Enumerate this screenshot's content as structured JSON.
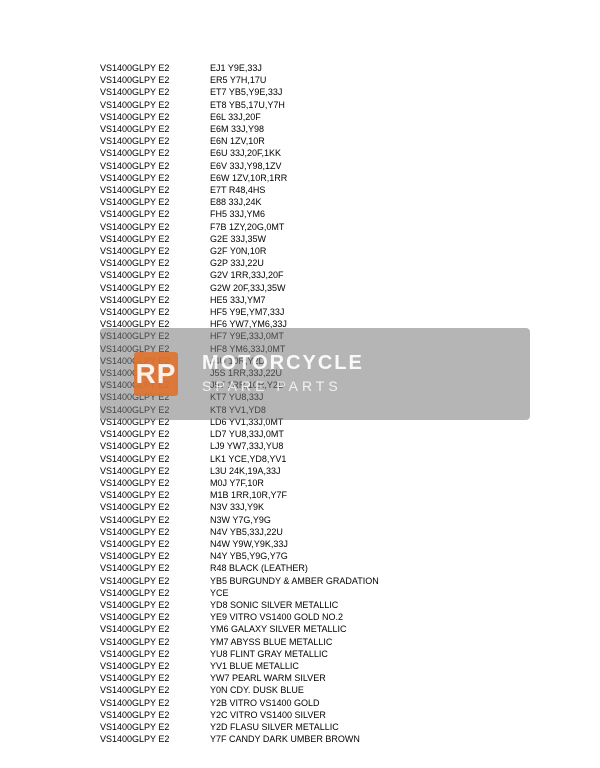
{
  "rows": [
    {
      "model": "VS1400GLPY E2",
      "code": "EJ1 Y9E,33J"
    },
    {
      "model": "VS1400GLPY E2",
      "code": "ER5 Y7H,17U"
    },
    {
      "model": "VS1400GLPY E2",
      "code": "ET7 YB5,Y9E,33J"
    },
    {
      "model": "VS1400GLPY E2",
      "code": "ET8 YB5,17U,Y7H"
    },
    {
      "model": "VS1400GLPY E2",
      "code": "E6L 33J,20F"
    },
    {
      "model": "VS1400GLPY E2",
      "code": "E6M 33J,Y98"
    },
    {
      "model": "VS1400GLPY E2",
      "code": "E6N 1ZV,10R"
    },
    {
      "model": "VS1400GLPY E2",
      "code": "E6U 33J,20F,1KK"
    },
    {
      "model": "VS1400GLPY E2",
      "code": "E6V 33J,Y98,1ZV"
    },
    {
      "model": "VS1400GLPY E2",
      "code": "E6W 1ZV,10R,1RR"
    },
    {
      "model": "VS1400GLPY E2",
      "code": "E7T R48,4HS"
    },
    {
      "model": "VS1400GLPY E2",
      "code": "E88 33J,24K"
    },
    {
      "model": "VS1400GLPY E2",
      "code": "FH5 33J,YM6"
    },
    {
      "model": "VS1400GLPY E2",
      "code": "F7B 1ZY,20G,0MT"
    },
    {
      "model": "VS1400GLPY E2",
      "code": "G2E 33J,35W"
    },
    {
      "model": "VS1400GLPY E2",
      "code": "G2F Y0N,10R"
    },
    {
      "model": "VS1400GLPY E2",
      "code": "G2P 33J,22U"
    },
    {
      "model": "VS1400GLPY E2",
      "code": "G2V 1RR,33J,20F"
    },
    {
      "model": "VS1400GLPY E2",
      "code": "G2W 20F,33J,35W"
    },
    {
      "model": "VS1400GLPY E2",
      "code": "HE5 33J,YM7"
    },
    {
      "model": "VS1400GLPY E2",
      "code": "HF5 Y9E,YM7,33J"
    },
    {
      "model": "VS1400GLPY E2",
      "code": "HF6 YW7,YM6,33J"
    },
    {
      "model": "VS1400GLPY E2",
      "code": "HF7 Y9E,33J,0MT"
    },
    {
      "model": "VS1400GLPY E2",
      "code": "HF8 YM6,33J,0MT"
    },
    {
      "model": "VS1400GLPY E2",
      "code": "J4U 10R,Y2D"
    },
    {
      "model": "VS1400GLPY E2",
      "code": "J5S 1RR,33J,22U"
    },
    {
      "model": "VS1400GLPY E2",
      "code": "J5T 1RR,10R,Y2D"
    },
    {
      "model": "VS1400GLPY E2",
      "code": "KT7 YU8,33J"
    },
    {
      "model": "VS1400GLPY E2",
      "code": "KT8 YV1,YD8"
    },
    {
      "model": "VS1400GLPY E2",
      "code": "LD6 YV1,33J,0MT"
    },
    {
      "model": "VS1400GLPY E2",
      "code": "LD7 YU8,33J,0MT"
    },
    {
      "model": "VS1400GLPY E2",
      "code": "LJ9 YW7,33J,YU8"
    },
    {
      "model": "VS1400GLPY E2",
      "code": "LK1 YCE,YD8,YV1"
    },
    {
      "model": "VS1400GLPY E2",
      "code": "L3U 24K,19A,33J"
    },
    {
      "model": "VS1400GLPY E2",
      "code": "M0J Y7F,10R"
    },
    {
      "model": "VS1400GLPY E2",
      "code": "M1B 1RR,10R,Y7F"
    },
    {
      "model": "VS1400GLPY E2",
      "code": "N3V 33J,Y9K"
    },
    {
      "model": "VS1400GLPY E2",
      "code": "N3W Y7G,Y9G"
    },
    {
      "model": "VS1400GLPY E2",
      "code": "N4V YB5,33J,22U"
    },
    {
      "model": "VS1400GLPY E2",
      "code": "N4W Y9W,Y9K,33J"
    },
    {
      "model": "VS1400GLPY E2",
      "code": "N4Y YB5,Y9G,Y7G"
    },
    {
      "model": "VS1400GLPY E2",
      "code": "R48 BLACK (LEATHER)"
    },
    {
      "model": "VS1400GLPY E2",
      "code": "YB5 BURGUNDY & AMBER GRADATION"
    },
    {
      "model": "VS1400GLPY E2",
      "code": "YCE"
    },
    {
      "model": "VS1400GLPY E2",
      "code": "YD8 SONIC SILVER METALLIC"
    },
    {
      "model": "VS1400GLPY E2",
      "code": "YE9 VITRO VS1400 GOLD NO.2"
    },
    {
      "model": "VS1400GLPY E2",
      "code": "YM6 GALAXY SILVER METALLIC"
    },
    {
      "model": "VS1400GLPY E2",
      "code": "YM7 ABYSS BLUE METALLIC"
    },
    {
      "model": "VS1400GLPY E2",
      "code": "YU8 FLINT GRAY METALLIC"
    },
    {
      "model": "VS1400GLPY E2",
      "code": "YV1 BLUE METALLIC"
    },
    {
      "model": "VS1400GLPY E2",
      "code": "YW7 PEARL WARM SILVER"
    },
    {
      "model": "VS1400GLPY E2",
      "code": "Y0N CDY. DUSK BLUE"
    },
    {
      "model": "VS1400GLPY E2",
      "code": "Y2B VITRO VS1400 GOLD"
    },
    {
      "model": "VS1400GLPY E2",
      "code": "Y2C VITRO VS1400 SILVER"
    },
    {
      "model": "VS1400GLPY E2",
      "code": "Y2D FLASU SILVER METALLIC"
    },
    {
      "model": "VS1400GLPY E2",
      "code": "Y7F CANDY DARK UMBER BROWN"
    }
  ],
  "watermark": {
    "logo": "RP",
    "line1": "MOTORCYCLE",
    "line2": "SPARE PARTS"
  }
}
